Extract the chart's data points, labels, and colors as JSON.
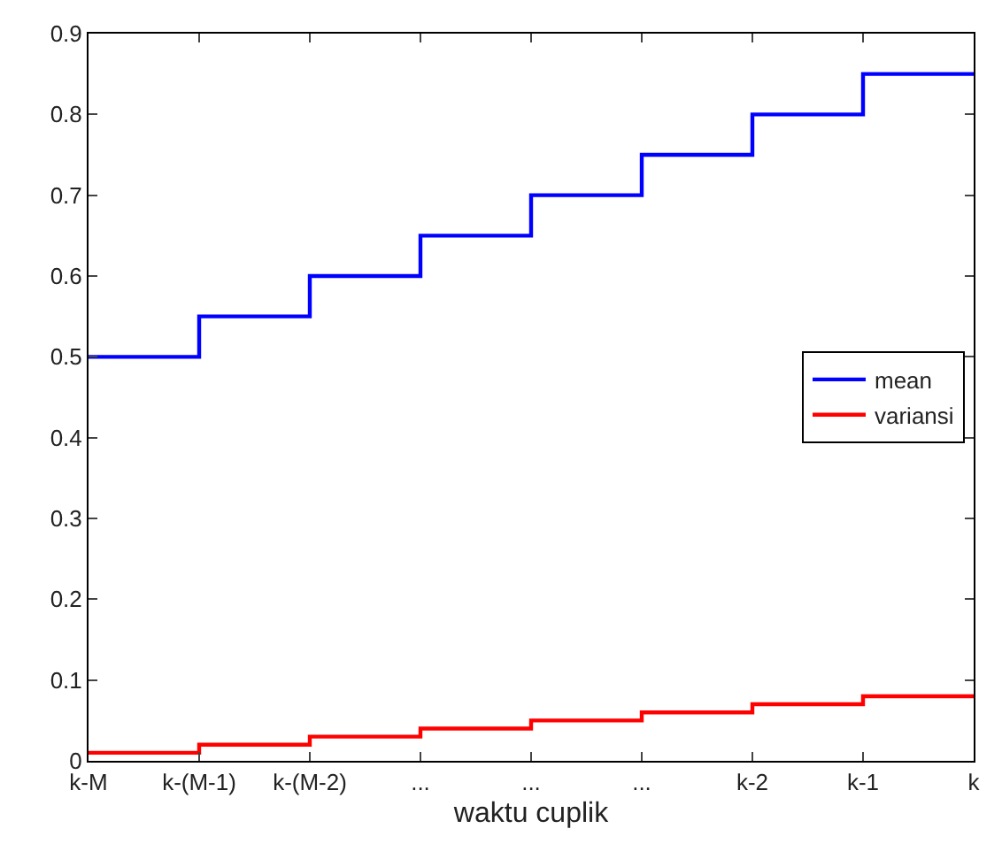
{
  "chart_data": {
    "type": "step",
    "xlabel": "waktu cuplik",
    "categories": [
      "k-M",
      "k-(M-1)",
      "k-(M-2)",
      "...",
      "...",
      "...",
      "k-2",
      "k-1",
      "k"
    ],
    "series": [
      {
        "name": "mean",
        "color": "#0000ff",
        "values": [
          0.5,
          0.55,
          0.6,
          0.65,
          0.7,
          0.75,
          0.8,
          0.85,
          0.85
        ]
      },
      {
        "name": "variansi",
        "color": "#ff0000",
        "values": [
          0.01,
          0.02,
          0.03,
          0.04,
          0.05,
          0.06,
          0.07,
          0.08,
          0.08
        ]
      }
    ],
    "ylim": [
      0,
      0.9
    ],
    "yticks": [
      0,
      0.1,
      0.2,
      0.3,
      0.4,
      0.5,
      0.6,
      0.7,
      0.8,
      0.9
    ],
    "grid": false,
    "legend": "right",
    "marker": "none",
    "line_style": "solid"
  }
}
